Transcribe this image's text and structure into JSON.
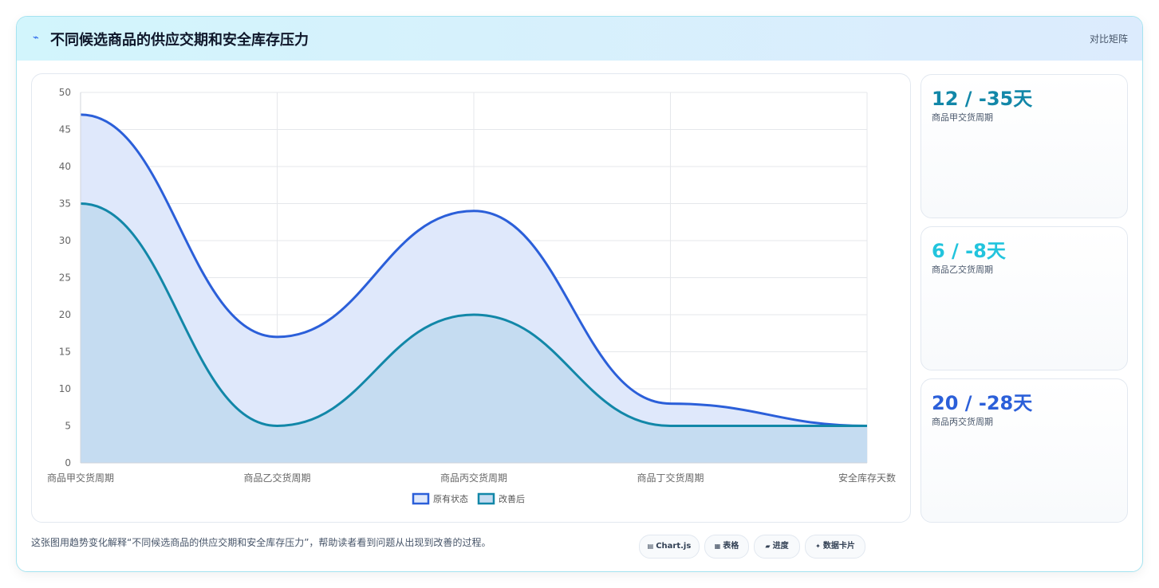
{
  "header": {
    "title": "不同候选商品的供应交期和安全库存压力",
    "action_label": "对比矩阵",
    "icon": "pulse-icon"
  },
  "chart_data": {
    "type": "area",
    "categories": [
      "商品甲交货周期",
      "商品乙交货周期",
      "商品丙交货周期",
      "商品丁交货周期",
      "安全库存天数"
    ],
    "series": [
      {
        "name": "原有状态",
        "values": [
          47,
          17,
          34,
          8,
          5
        ],
        "color": "#2b5fd9",
        "fill": "#dfe8fb"
      },
      {
        "name": "改善后",
        "values": [
          35,
          5,
          20,
          5,
          5
        ],
        "color": "#1287a8",
        "fill": "#c5dcf1"
      }
    ],
    "ylim": [
      0,
      50
    ],
    "yticks": [
      0,
      5,
      10,
      15,
      20,
      25,
      30,
      35,
      40,
      45,
      50
    ],
    "grid": true,
    "legend_position": "bottom"
  },
  "stats": [
    {
      "value": "12 / -35天",
      "label": "商品甲交货周期",
      "color": "#1287a8"
    },
    {
      "value": "6 / -8天",
      "label": "商品乙交货周期",
      "color": "#22c4dd"
    },
    {
      "value": "20 / -28天",
      "label": "商品丙交货周期",
      "color": "#2b5fd9"
    }
  ],
  "caption": "这张图用趋势变化解释“不同候选商品的供应交期和安全库存压力”，帮助读者看到问题从出现到改善的过程。",
  "chips": [
    {
      "icon": "▤",
      "label": "Chart.js",
      "icon_name": "chart-icon"
    },
    {
      "icon": "▦",
      "label": "表格",
      "icon_name": "table-icon"
    },
    {
      "icon": "▰",
      "label": "进度",
      "icon_name": "progress-icon"
    },
    {
      "icon": "✦",
      "label": "数据卡片",
      "icon_name": "sparkle-icon"
    }
  ]
}
